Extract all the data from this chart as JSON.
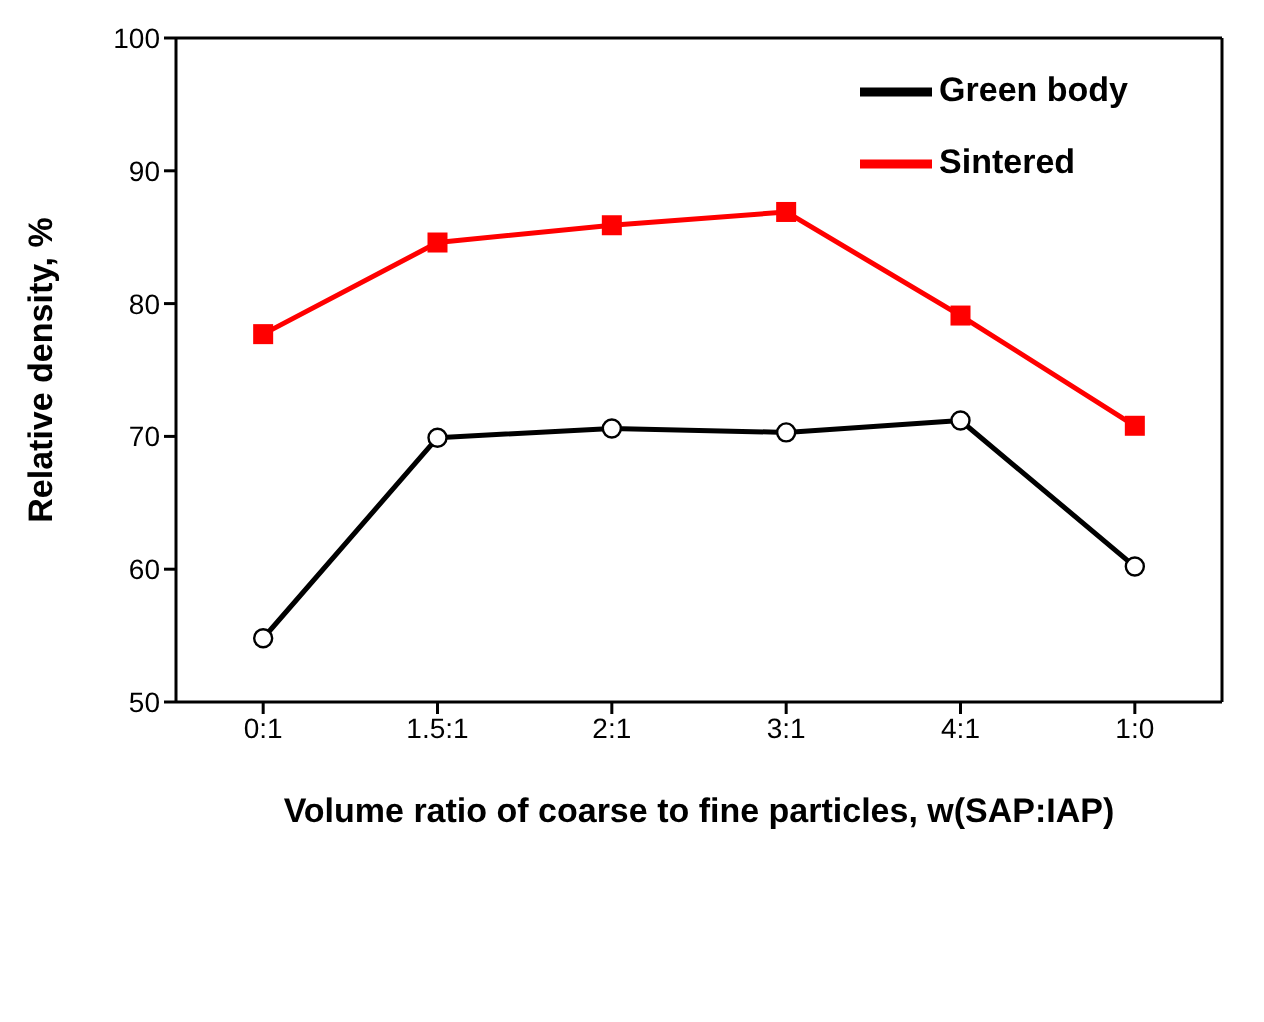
{
  "chart_data": {
    "type": "line",
    "xlabel": "Volume ratio of  coarse to  fine particles, w(SAP:IAP)",
    "ylabel": "Relative density, %",
    "categories": [
      "0:1",
      "1.5:1",
      "2:1",
      "3:1",
      "4:1",
      "1:0"
    ],
    "series": [
      {
        "name": "Green body",
        "color": "#000000",
        "marker": "circle",
        "values": [
          54.8,
          69.9,
          70.6,
          70.3,
          71.2,
          60.2
        ]
      },
      {
        "name": "Sintered",
        "color": "#ff0000",
        "marker": "square",
        "values": [
          77.7,
          84.6,
          85.9,
          86.9,
          79.1,
          70.8
        ]
      }
    ],
    "ylim": [
      50,
      100
    ],
    "yticks": [
      50,
      60,
      70,
      80,
      90,
      100
    ],
    "grid": false,
    "legend": "top right",
    "line_style": "solid"
  }
}
